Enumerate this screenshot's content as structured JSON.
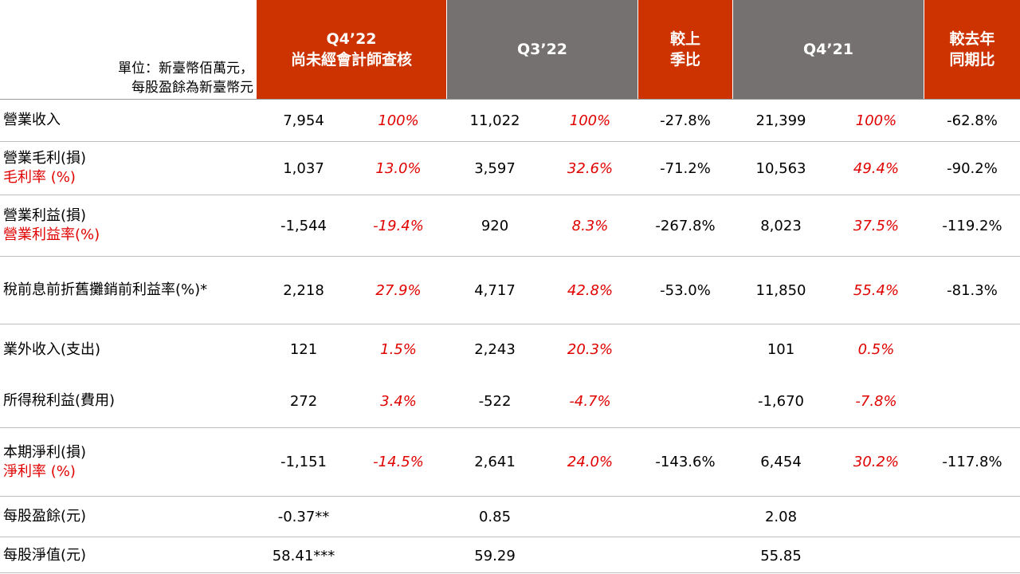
{
  "header": {
    "unit_line1": "單位：新臺幣佰萬元，",
    "unit_line2": "每股盈餘為新臺幣元",
    "q4_22_line1": "Q4’22",
    "q4_22_line2": "尚未經會計師查核",
    "q3_22": "Q3’22",
    "qoq_line1": "較上",
    "qoq_line2": "季比",
    "q4_21": "Q4’21",
    "yoy_line1": "較去年",
    "yoy_line2": "同期比"
  },
  "colors": {
    "accent_red": "#cc3300",
    "header_gray": "#767171",
    "percent_red": "#e00000"
  },
  "rows": [
    {
      "label": "營業收入",
      "sublabel": "",
      "q4_22": "7,954",
      "q4_22_pct": "100%",
      "q3_22": "11,022",
      "q3_22_pct": "100%",
      "qoq": "-27.8%",
      "q4_21": "21,399",
      "q4_21_pct": "100%",
      "yoy": "-62.8%"
    },
    {
      "label": "營業毛利(損)",
      "sublabel": "毛利率 (%)",
      "q4_22": "1,037",
      "q4_22_pct": "13.0%",
      "q3_22": "3,597",
      "q3_22_pct": "32.6%",
      "qoq": "-71.2%",
      "q4_21": "10,563",
      "q4_21_pct": "49.4%",
      "yoy": "-90.2%"
    },
    {
      "label": "營業利益(損)",
      "sublabel": "營業利益率(%)",
      "q4_22": "-1,544",
      "q4_22_pct": "-19.4%",
      "q3_22": "920",
      "q3_22_pct": "8.3%",
      "qoq": "-267.8%",
      "q4_21": "8,023",
      "q4_21_pct": "37.5%",
      "yoy": "-119.2%"
    },
    {
      "label": "稅前息前折舊攤銷前利益率(%)*",
      "sublabel": "",
      "q4_22": "2,218",
      "q4_22_pct": "27.9%",
      "q3_22": "4,717",
      "q3_22_pct": "42.8%",
      "qoq": "-53.0%",
      "q4_21": "11,850",
      "q4_21_pct": "55.4%",
      "yoy": "-81.3%"
    },
    {
      "label": "業外收入(支出)",
      "sublabel": "",
      "q4_22": "121",
      "q4_22_pct": "1.5%",
      "q3_22": "2,243",
      "q3_22_pct": "20.3%",
      "qoq": "",
      "q4_21": "101",
      "q4_21_pct": "0.5%",
      "yoy": ""
    },
    {
      "label": "所得稅利益(費用)",
      "sublabel": "",
      "q4_22": "272",
      "q4_22_pct": "3.4%",
      "q3_22": "-522",
      "q3_22_pct": "-4.7%",
      "qoq": "",
      "q4_21": "-1,670",
      "q4_21_pct": "-7.8%",
      "yoy": ""
    },
    {
      "label": "本期淨利(損)",
      "sublabel": "淨利率 (%)",
      "q4_22": "-1,151",
      "q4_22_pct": "-14.5%",
      "q3_22": "2,641",
      "q3_22_pct": "24.0%",
      "qoq": "-143.6%",
      "q4_21": "6,454",
      "q4_21_pct": "30.2%",
      "yoy": "-117.8%"
    },
    {
      "label": "每股盈餘(元)",
      "sublabel": "",
      "q4_22": "-0.37**",
      "q4_22_pct": "",
      "q3_22": "0.85",
      "q3_22_pct": "",
      "qoq": "",
      "q4_21": "2.08",
      "q4_21_pct": "",
      "yoy": ""
    },
    {
      "label": "每股淨值(元)",
      "sublabel": "",
      "q4_22": "58.41***",
      "q4_22_pct": "",
      "q3_22": "59.29",
      "q3_22_pct": "",
      "qoq": "",
      "q4_21": "55.85",
      "q4_21_pct": "",
      "yoy": ""
    }
  ]
}
